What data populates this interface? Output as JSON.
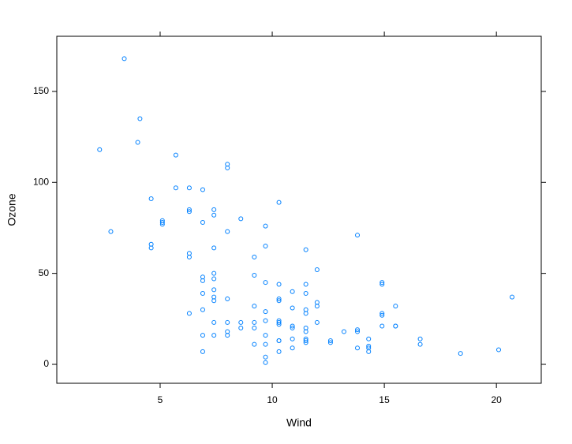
{
  "chart_data": {
    "type": "scatter",
    "x_label": "Wind",
    "y_label": "Ozone",
    "color": "#0080ff",
    "xlim": [
      0.39,
      22.0
    ],
    "ylim": [
      -10.4,
      180.3
    ],
    "xticks": [
      5,
      10,
      15,
      20
    ],
    "yticks": [
      0,
      50,
      100,
      150
    ],
    "x": [
      7.4,
      8.0,
      12.6,
      11.5,
      14.9,
      8.6,
      13.8,
      20.1,
      6.9,
      9.7,
      9.2,
      10.9,
      13.2,
      11.5,
      12.0,
      18.4,
      11.5,
      9.7,
      9.7,
      16.6,
      9.7,
      12.0,
      12.0,
      14.9,
      5.7,
      7.4,
      9.7,
      13.8,
      11.5,
      8.0,
      14.9,
      20.7,
      9.2,
      11.5,
      10.3,
      4.1,
      9.2,
      9.2,
      4.6,
      10.9,
      5.1,
      6.3,
      5.7,
      7.4,
      14.3,
      14.9,
      14.3,
      6.9,
      10.3,
      6.3,
      5.1,
      11.5,
      6.9,
      8.6,
      8.0,
      8.6,
      12.0,
      7.4,
      7.4,
      7.4,
      9.2,
      6.9,
      13.8,
      7.4,
      6.9,
      7.4,
      4.6,
      4.0,
      10.3,
      8.0,
      11.5,
      11.5,
      9.7,
      10.3,
      6.3,
      7.4,
      10.9,
      10.3,
      15.5,
      14.3,
      9.7,
      3.4,
      8.0,
      9.7,
      2.3,
      6.3,
      6.3,
      6.9,
      5.1,
      2.8,
      4.6,
      7.4,
      15.5,
      10.9,
      10.3,
      10.9,
      9.7,
      14.9,
      15.5,
      6.3,
      10.9,
      11.5,
      6.9,
      13.8,
      10.3,
      10.3,
      8.0,
      12.6,
      9.2,
      10.3,
      10.3,
      16.6,
      6.9,
      14.3,
      8.0,
      11.5
    ],
    "y": [
      41,
      36,
      12,
      18,
      28,
      23,
      19,
      8,
      7,
      16,
      11,
      14,
      18,
      14,
      34,
      6,
      30,
      11,
      1,
      11,
      4,
      32,
      23,
      45,
      115,
      37,
      29,
      71,
      39,
      23,
      21,
      37,
      20,
      12,
      13,
      135,
      49,
      32,
      64,
      40,
      77,
      97,
      97,
      85,
      10,
      27,
      7,
      48,
      35,
      61,
      79,
      63,
      16,
      80,
      108,
      20,
      52,
      82,
      50,
      64,
      59,
      39,
      9,
      16,
      78,
      35,
      66,
      122,
      89,
      110,
      44,
      28,
      65,
      22,
      59,
      23,
      31,
      44,
      21,
      9,
      45,
      168,
      73,
      76,
      118,
      84,
      85,
      96,
      78,
      73,
      91,
      47,
      32,
      20,
      23,
      21,
      24,
      44,
      21,
      28,
      9,
      13,
      46,
      18,
      13,
      24,
      16,
      13,
      23,
      36,
      7,
      14,
      30,
      14,
      18,
      20
    ]
  }
}
